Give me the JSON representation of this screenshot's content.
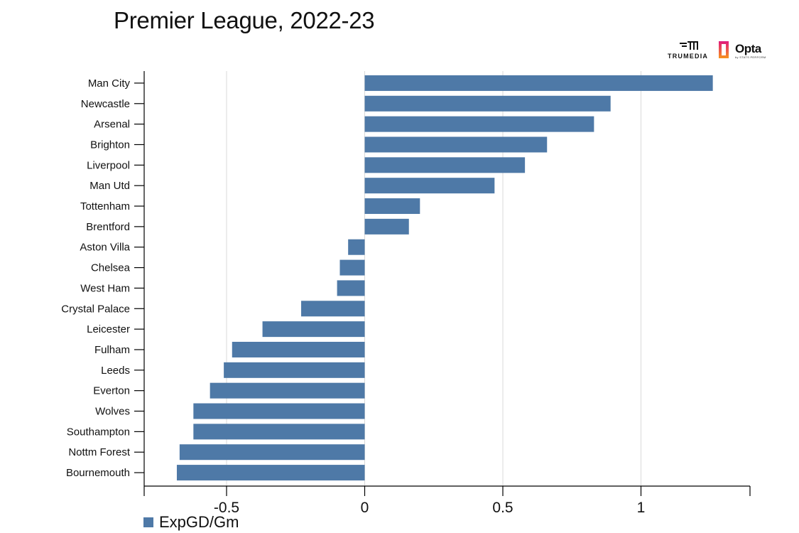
{
  "title": "Premier League, 2022-23",
  "brands": {
    "trumedia": "TRUMEDIA",
    "opta": "Opta",
    "opta_sub": "by STATS PERFORM"
  },
  "colors": {
    "bar": "#4e79a7",
    "grid": "#d9d9d9",
    "axis": "#000000"
  },
  "chart_data": {
    "type": "bar",
    "orientation": "horizontal",
    "title": "Premier League, 2022-23",
    "categories": [
      "Man City",
      "Newcastle",
      "Arsenal",
      "Brighton",
      "Liverpool",
      "Man Utd",
      "Tottenham",
      "Brentford",
      "Aston Villa",
      "Chelsea",
      "West Ham",
      "Crystal Palace",
      "Leicester",
      "Fulham",
      "Leeds",
      "Everton",
      "Wolves",
      "Southampton",
      "Nottm Forest",
      "Bournemouth"
    ],
    "series": [
      {
        "name": "ExpGD/Gm",
        "values": [
          1.26,
          0.89,
          0.83,
          0.66,
          0.58,
          0.47,
          0.2,
          0.16,
          -0.06,
          -0.09,
          -0.1,
          -0.23,
          -0.37,
          -0.48,
          -0.51,
          -0.56,
          -0.62,
          -0.62,
          -0.67,
          -0.68
        ]
      }
    ],
    "xticks": [
      -0.5,
      0,
      0.5,
      1
    ],
    "xtick_labels": [
      "-0.5",
      "0",
      "0.5",
      "1"
    ],
    "xlim": [
      -0.8,
      1.39
    ],
    "grid": true,
    "legend": "bottom-left"
  }
}
